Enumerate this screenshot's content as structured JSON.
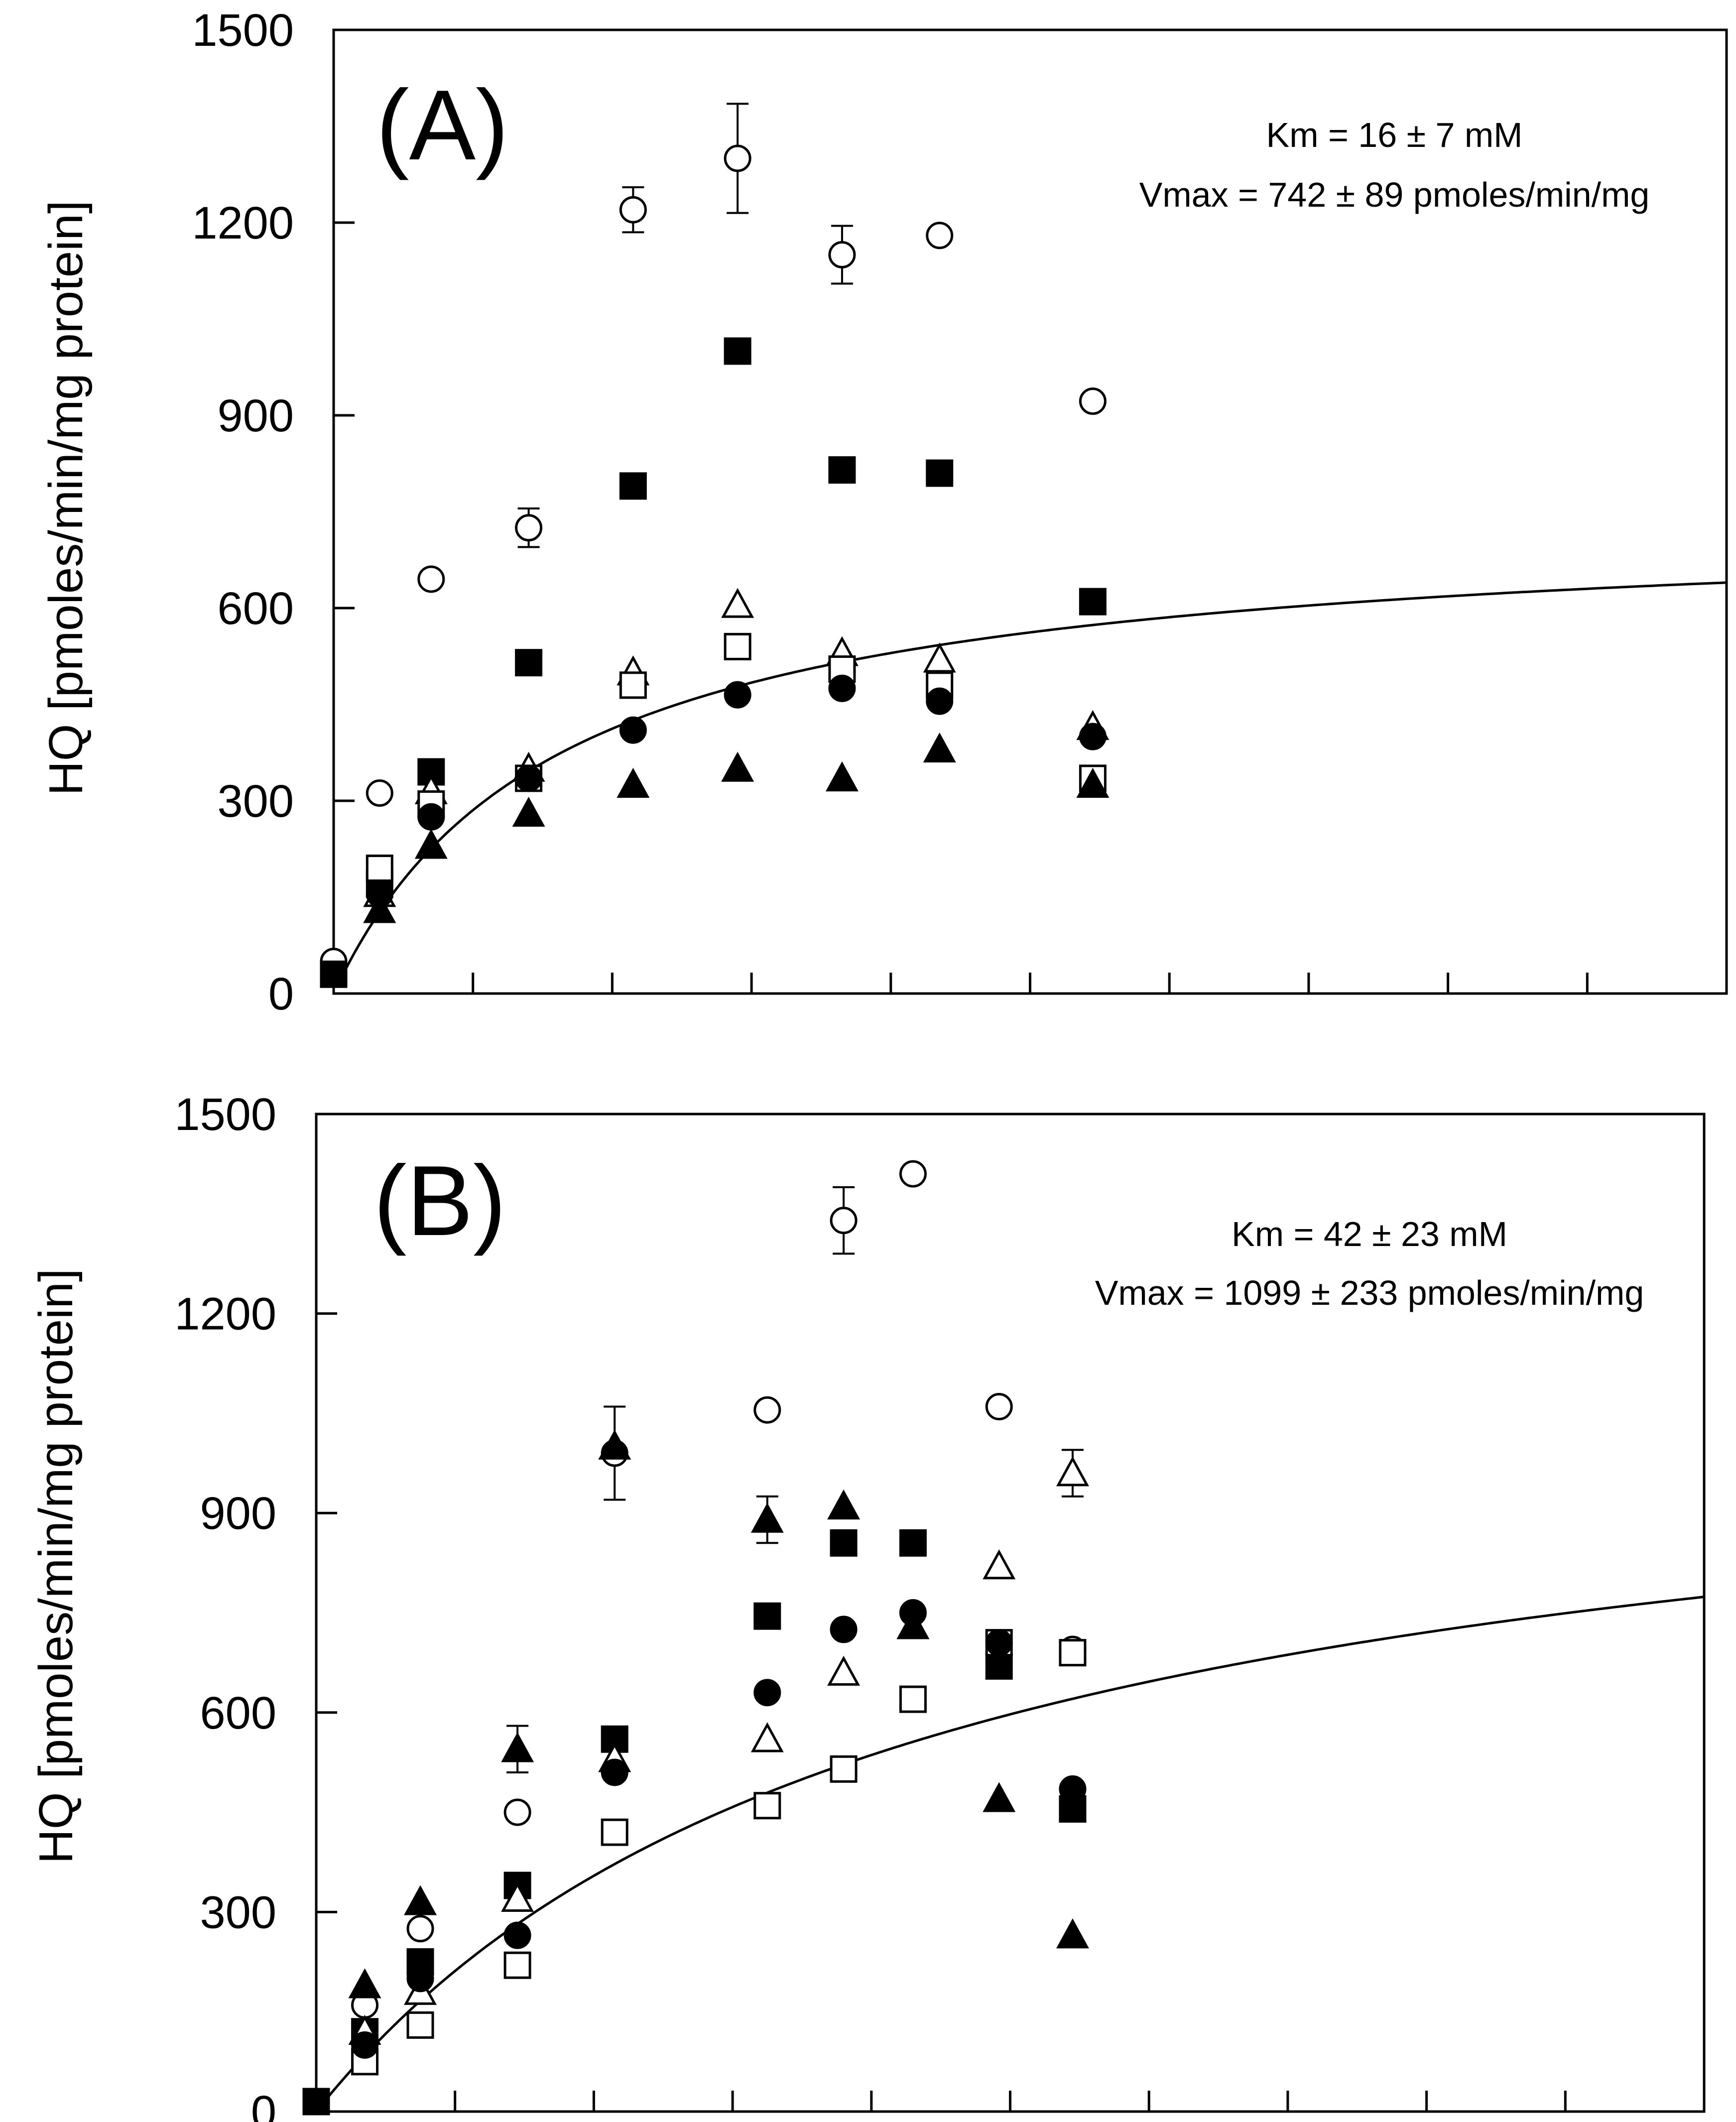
{
  "chart_data": [
    {
      "panel": "A",
      "type": "scatter",
      "title": "",
      "label": "(A)",
      "xlabel": "",
      "ylabel": "HQ [pmoles/min/mg protein]",
      "ylim": [
        0,
        1500
      ],
      "yticks": [
        0,
        300,
        600,
        900,
        1200,
        1500
      ],
      "xlim": [
        0,
        100
      ],
      "xticks_count": 10,
      "annotations": [
        "Km = 16 ± 7 mM",
        "Vmax = 742 ± 89 pmoles/min/mg"
      ],
      "fit": {
        "model": "michaelis-menten",
        "vmax": 742,
        "km": 16,
        "x_range": [
          0.5,
          100
        ]
      },
      "series": [
        {
          "name": "open circle",
          "marker": "circle",
          "filled": false,
          "x": [
            0,
            3.3,
            7,
            14,
            21.5,
            29,
            36.5,
            43.5,
            54.5
          ],
          "y": [
            50,
            312,
            645,
            725,
            1220,
            1300,
            1150,
            1180,
            922
          ],
          "yerr": [
            0,
            0,
            0,
            30,
            35,
            85,
            45,
            0,
            0
          ]
        },
        {
          "name": "filled square",
          "marker": "square",
          "filled": true,
          "x": [
            0,
            3.3,
            7,
            14,
            21.5,
            29,
            36.5,
            43.5,
            54.5
          ],
          "y": [
            30,
            170,
            345,
            515,
            790,
            1000,
            815,
            810,
            610
          ]
        },
        {
          "name": "open triangle",
          "marker": "triangle",
          "filled": false,
          "x": [
            3.3,
            7,
            14,
            21.5,
            29,
            36.5,
            43.5,
            54.5
          ],
          "y": [
            155,
            315,
            350,
            500,
            605,
            530,
            520,
            415
          ]
        },
        {
          "name": "open square",
          "marker": "square",
          "filled": false,
          "x": [
            3.3,
            7,
            14,
            21.5,
            29,
            36.5,
            43.5,
            54.5
          ],
          "y": [
            195,
            295,
            335,
            480,
            540,
            505,
            480,
            335
          ]
        },
        {
          "name": "filled circle",
          "marker": "circle",
          "filled": true,
          "x": [
            3.3,
            7,
            14,
            21.5,
            29,
            36.5,
            43.5,
            54.5
          ],
          "y": [
            155,
            275,
            335,
            410,
            465,
            475,
            455,
            400
          ]
        },
        {
          "name": "filled triangle",
          "marker": "triangle",
          "filled": true,
          "x": [
            3.3,
            7,
            14,
            21.5,
            29,
            36.5,
            43.5,
            54.5
          ],
          "y": [
            130,
            230,
            280,
            325,
            350,
            335,
            380,
            325
          ]
        }
      ]
    },
    {
      "panel": "B",
      "type": "scatter",
      "title": "",
      "label": "(B)",
      "xlabel": "",
      "ylabel": "HQ  [pmoles/min/mg protein]",
      "ylim": [
        0,
        1500
      ],
      "yticks": [
        0,
        300,
        600,
        900,
        1200,
        1500
      ],
      "xlim": [
        0,
        100
      ],
      "xticks_count": 10,
      "annotations": [
        "Km = 42 ± 23 mM",
        "Vmax = 1099 ± 233 pmoles/min/mg"
      ],
      "fit": {
        "model": "michaelis-menten",
        "vmax": 1099,
        "km": 42,
        "x_range": [
          0.3,
          100
        ]
      },
      "series": [
        {
          "name": "open circle",
          "marker": "circle",
          "filled": false,
          "x": [
            0,
            3.5,
            7.5,
            14.5,
            21.5,
            32.5,
            38,
            43,
            49.2,
            54.5
          ],
          "y": [
            15,
            160,
            275,
            450,
            990,
            1055,
            1340,
            1410,
            1060,
            695
          ],
          "yerr": [
            0,
            0,
            0,
            0,
            70,
            0,
            50,
            0,
            0,
            0
          ]
        },
        {
          "name": "filled square",
          "marker": "square",
          "filled": true,
          "x": [
            0,
            3.5,
            7.5,
            14.5,
            21.5,
            32.5,
            38,
            43,
            49.2,
            54.5
          ],
          "y": [
            15,
            120,
            225,
            340,
            560,
            745,
            855,
            855,
            670,
            455
          ]
        },
        {
          "name": "open triangle",
          "marker": "triangle",
          "filled": false,
          "x": [
            3.5,
            7.5,
            14.5,
            21.5,
            32.5,
            38,
            43,
            49.2,
            54.5
          ],
          "y": [
            120,
            180,
            320,
            530,
            560,
            660,
            730,
            820,
            960
          ],
          "yerr": [
            0,
            0,
            0,
            0,
            0,
            0,
            0,
            0,
            35
          ]
        },
        {
          "name": "open square",
          "marker": "square",
          "filled": false,
          "x": [
            3.5,
            7.5,
            14.5,
            21.5,
            32.5,
            38,
            43,
            49.2,
            54.5
          ],
          "y": [
            75,
            130,
            220,
            420,
            460,
            515,
            620,
            705,
            690
          ]
        },
        {
          "name": "filled circle",
          "marker": "circle",
          "filled": true,
          "x": [
            3.5,
            7.5,
            14.5,
            21.5,
            32.5,
            38,
            43,
            49.2,
            54.5
          ],
          "y": [
            100,
            200,
            265,
            510,
            630,
            725,
            750,
            705,
            485
          ]
        },
        {
          "name": "filled triangle",
          "marker": "triangle",
          "filled": true,
          "x": [
            3.5,
            7.5,
            14.5,
            21.5,
            32.5,
            38,
            43,
            49.2,
            54.5
          ],
          "y": [
            190,
            315,
            545,
            1000,
            890,
            910,
            730,
            470,
            265
          ],
          "yerr": [
            0,
            0,
            35,
            0,
            35,
            0,
            0,
            0,
            0
          ]
        }
      ]
    }
  ]
}
